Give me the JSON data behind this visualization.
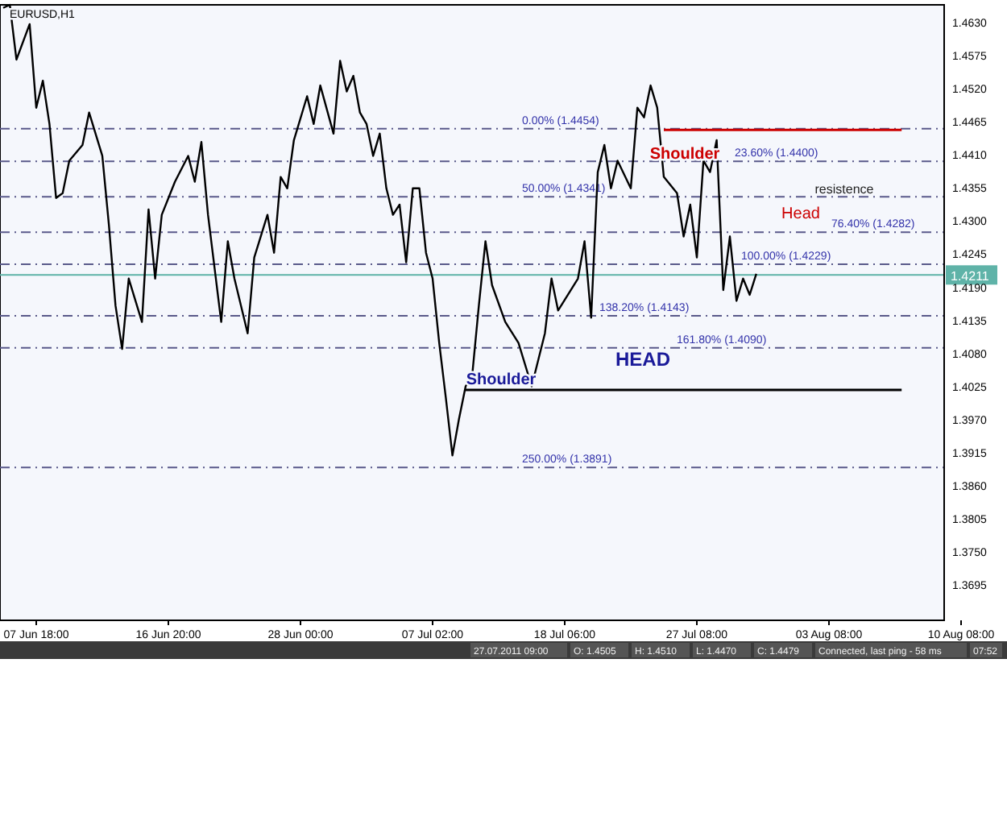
{
  "chart_data": {
    "type": "line",
    "title": "EURUSD,H1",
    "categories": [
      null,
      null,
      null,
      null,
      null,
      "07 Jun 18:00",
      null,
      null,
      null,
      null,
      null,
      null,
      null,
      null,
      null,
      null,
      null,
      null,
      null,
      null,
      null,
      null,
      null,
      null,
      null,
      "16 Jun 20:00",
      null,
      null,
      null,
      null,
      null,
      null,
      null,
      null,
      null,
      null,
      null,
      null,
      null,
      null,
      null,
      null,
      null,
      null,
      null,
      "28 Jun 00:00",
      null,
      null,
      null,
      null,
      null,
      null,
      null,
      null,
      null,
      null,
      null,
      null,
      null,
      null,
      null,
      null,
      null,
      null,
      null,
      "07 Jul 02:00",
      null,
      null,
      null,
      null,
      null,
      null,
      null,
      null,
      null,
      null,
      null,
      null,
      null,
      null,
      null,
      null,
      null,
      null,
      null,
      "18 Jul 06:00",
      null,
      null,
      null,
      null,
      null,
      null,
      null,
      null,
      null,
      null,
      null,
      null,
      null,
      null,
      null,
      null,
      null,
      null,
      null,
      "27 Jul 08:00",
      null,
      null,
      null,
      null,
      null,
      null,
      null,
      null,
      null,
      null,
      null,
      null,
      null,
      null,
      null,
      null,
      null,
      null,
      null,
      "03 Aug 08:00",
      null,
      null,
      null,
      null,
      null,
      null,
      null,
      null,
      null,
      null,
      null,
      null,
      null,
      null,
      null,
      null,
      null,
      null,
      null,
      "10 Aug 08:00"
    ],
    "series": [
      {
        "color": "#000000",
        "values": [
          1.4655,
          1.466,
          1.4569,
          null,
          1.4628,
          1.4489,
          1.4534,
          1.4462,
          1.4339,
          1.4347,
          1.4401,
          null,
          1.4427,
          1.4481,
          null,
          1.4409,
          1.4294,
          1.416,
          1.4088,
          1.4205,
          null,
          1.4133,
          1.432,
          1.4205,
          1.4311,
          null,
          1.4366,
          null,
          1.4409,
          1.4366,
          1.4432,
          1.4311,
          null,
          1.4133,
          1.4267,
          1.4205,
          null,
          1.4114,
          1.424,
          null,
          1.4311,
          1.4248,
          1.4374,
          1.4355,
          1.4435,
          null,
          1.4508,
          1.4462,
          1.4526,
          null,
          1.4446,
          1.4567,
          1.4516,
          1.4542,
          1.4481,
          1.4462,
          1.4409,
          1.4446,
          1.4355,
          1.4311,
          1.4328,
          1.4232,
          1.4355,
          1.4355,
          1.4248,
          1.4205,
          1.4098,
          1.4007,
          1.3911,
          1.3972,
          1.4026,
          1.4045,
          1.416,
          1.4267,
          1.4194,
          null,
          1.4133,
          null,
          1.4098,
          null,
          1.4026,
          null,
          1.4114,
          1.4205,
          1.4152,
          null,
          null,
          1.4205,
          1.4267,
          1.414,
          1.4382,
          1.4427,
          1.4355,
          1.4401,
          null,
          1.4355,
          1.4489,
          1.4473,
          1.4526,
          1.4489,
          1.4374,
          null,
          1.4347,
          1.4275,
          1.4328,
          1.424,
          1.4401,
          1.4382,
          1.4435,
          1.4186,
          1.4275,
          1.4168,
          1.4205,
          1.4178,
          1.4213,
          null,
          null,
          null,
          null,
          null,
          null,
          null,
          null,
          null,
          null,
          null,
          null,
          null,
          null,
          null,
          null,
          null,
          null,
          null,
          null,
          null,
          null,
          null,
          null,
          null,
          null,
          null,
          null,
          null,
          null,
          null
        ]
      },
      {
        "type": "line",
        "color": "#cc0000",
        "values": [
          null,
          null,
          null,
          null,
          null,
          null,
          null,
          null,
          null,
          null,
          null,
          null,
          null,
          null,
          null,
          null,
          null,
          null,
          null,
          null,
          null,
          null,
          null,
          null,
          null,
          null,
          null,
          null,
          null,
          null,
          null,
          null,
          null,
          null,
          null,
          null,
          null,
          null,
          null,
          null,
          null,
          null,
          null,
          null,
          null,
          null,
          null,
          null,
          null,
          null,
          null,
          null,
          null,
          null,
          null,
          null,
          null,
          null,
          null,
          null,
          null,
          null,
          null,
          null,
          null,
          null,
          null,
          null,
          null,
          null,
          null,
          null,
          null,
          null,
          null,
          null,
          null,
          null,
          null,
          null,
          null,
          null,
          null,
          null,
          null,
          null,
          null,
          null,
          null,
          null,
          null,
          null,
          null,
          null,
          null,
          null,
          null,
          null,
          null,
          null,
          1.4452,
          null,
          null,
          null,
          null,
          null,
          null,
          null,
          null,
          null,
          null,
          null,
          null,
          null,
          null,
          null,
          null,
          null,
          null,
          null,
          null,
          null,
          null,
          null,
          null,
          null,
          null,
          null,
          null,
          null,
          null,
          null,
          null,
          null,
          null,
          null,
          1.4452,
          null,
          null,
          null,
          null,
          null,
          null,
          null,
          null,
          null
        ]
      },
      {
        "type": "line",
        "color": "#000000",
        "values": [
          null,
          null,
          null,
          null,
          null,
          null,
          null,
          null,
          null,
          null,
          null,
          null,
          null,
          null,
          null,
          null,
          null,
          null,
          null,
          null,
          null,
          null,
          null,
          null,
          null,
          null,
          null,
          null,
          null,
          null,
          null,
          null,
          null,
          null,
          null,
          null,
          null,
          null,
          null,
          null,
          null,
          null,
          null,
          null,
          null,
          null,
          null,
          null,
          null,
          null,
          null,
          null,
          null,
          null,
          null,
          null,
          null,
          null,
          null,
          null,
          null,
          null,
          null,
          null,
          null,
          null,
          null,
          null,
          null,
          null,
          1.402,
          null,
          null,
          null,
          null,
          null,
          null,
          null,
          null,
          null,
          null,
          null,
          null,
          null,
          null,
          null,
          null,
          null,
          null,
          null,
          null,
          null,
          null,
          null,
          null,
          null,
          null,
          null,
          null,
          null,
          null,
          null,
          null,
          null,
          null,
          null,
          null,
          null,
          null,
          null,
          null,
          null,
          null,
          null,
          null,
          null,
          null,
          null,
          null,
          null,
          null,
          null,
          null,
          null,
          null,
          null,
          null,
          null,
          null,
          null,
          null,
          null,
          null,
          null,
          null,
          null,
          1.402,
          null,
          null,
          null,
          null,
          null,
          null,
          null,
          null,
          null
        ]
      }
    ],
    "ylim": [
      1.3637,
      1.466
    ],
    "yticks": [
      {
        "value": 1.463,
        "label": "1.4630"
      },
      1.4575,
      {
        "value": 1.452,
        "label": "1.4520"
      },
      1.4465,
      {
        "value": 1.441,
        "label": "1.4410"
      },
      1.4355,
      {
        "value": 1.43,
        "label": "1.4300"
      },
      1.4245,
      {
        "value": 1.419,
        "label": "1.4190"
      },
      1.4135,
      {
        "value": 1.408,
        "label": "1.4080"
      },
      1.4025,
      {
        "value": 1.397,
        "label": "1.3970"
      },
      1.3915,
      {
        "value": 1.386,
        "label": "1.3860"
      },
      1.3805,
      {
        "value": 1.375,
        "label": "1.3750"
      },
      1.3695
    ],
    "line_style": "solid",
    "ref_lines": [
      {
        "axis": "y",
        "value": 1.4454,
        "label": "0.00% (1.4454)",
        "color": "#5a5a8a",
        "line_style": "dashed"
      },
      {
        "axis": "y",
        "value": 1.44,
        "label": "23.60% (1.4400)",
        "color": "#5a5a8a",
        "line_style": "dashed"
      },
      {
        "axis": "y",
        "value": 1.4341,
        "label": "50.00% (1.4341)",
        "color": "#5a5a8a",
        "line_style": "dashed"
      },
      {
        "axis": "y",
        "value": 1.4282,
        "label": "76.40% (1.4282)",
        "color": "#5a5a8a",
        "line_style": "dashed"
      },
      {
        "axis": "y",
        "value": 1.4229,
        "label": "100.00% (1.4229)",
        "color": "#5a5a8a",
        "line_style": "dashed"
      },
      {
        "axis": "y",
        "value": 1.4143,
        "label": "138.20% (1.4143)",
        "color": "#5a5a8a",
        "line_style": "dashed"
      },
      {
        "axis": "y",
        "value": 1.409,
        "label": "161.80% (1.4090)",
        "color": "#5a5a8a",
        "line_style": "dashed"
      },
      {
        "axis": "y",
        "value": 1.3891,
        "label": "250.00% (1.3891)",
        "color": "#5a5a8a",
        "line_style": "dashed"
      },
      {
        "axis": "y",
        "value": 1.4211,
        "label": "1.4211",
        "color": "#5fb3a8",
        "line_style": "solid"
      }
    ],
    "annotations": [
      {
        "text": "Shoulder",
        "y": 1.4452
      },
      "Head",
      "resistence",
      "HEAD",
      "Shoulder",
      "27.07.2011 09:00",
      "O: 1.4505",
      "H: 1.4510",
      "L: 1.4470",
      "C: 1.4479",
      "Connected, last ping - 58 ms",
      "07:52"
    ]
  }
}
